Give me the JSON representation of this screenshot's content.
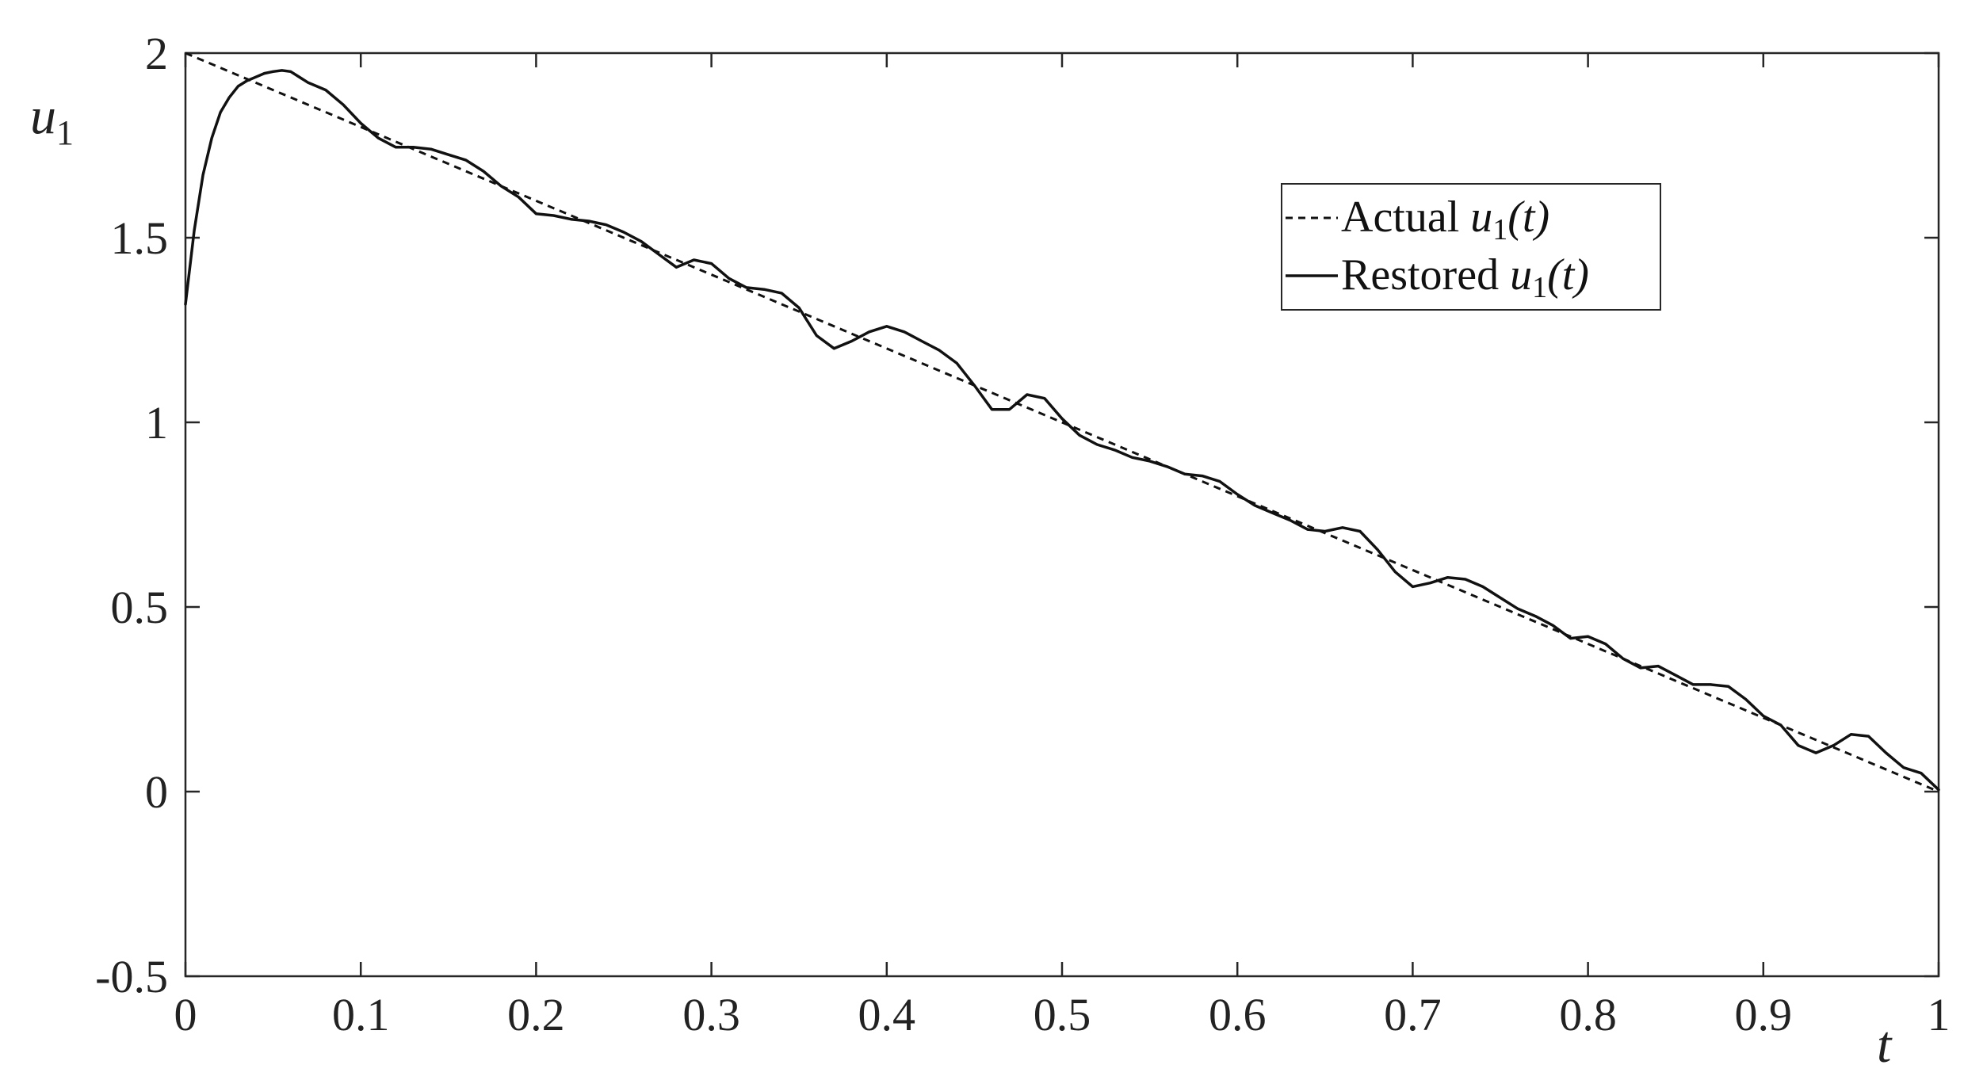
{
  "chart_data": {
    "type": "line",
    "title": "",
    "xlabel": "t",
    "ylabel": {
      "base": "u",
      "sub": "1"
    },
    "xlim": [
      0,
      1
    ],
    "ylim": [
      -0.5,
      2
    ],
    "x_ticks": [
      0,
      0.1,
      0.2,
      0.3,
      0.4,
      0.5,
      0.6,
      0.7,
      0.8,
      0.9,
      1
    ],
    "x_tick_labels": [
      "0",
      "0.1",
      "0.2",
      "0.3",
      "0.4",
      "0.5",
      "0.6",
      "0.7",
      "0.8",
      "0.9",
      "1"
    ],
    "y_ticks": [
      -0.5,
      0,
      0.5,
      1,
      1.5,
      2
    ],
    "y_tick_labels": [
      "-0.5",
      "0",
      "0.5",
      "1",
      "1.5",
      "2"
    ],
    "grid": false,
    "legend_position": "top-right",
    "series": [
      {
        "name": "Actual u1(t)",
        "legend": {
          "prefix": "Actual ",
          "math": "u",
          "sub": "1",
          "suffix": "(t)"
        },
        "style": "dashed",
        "color": "#111111",
        "x": [
          0,
          1
        ],
        "y": [
          2,
          0
        ]
      },
      {
        "name": "Restored u1(t)",
        "legend": {
          "prefix": "Restored ",
          "math": "u",
          "sub": "1",
          "suffix": "(t)"
        },
        "style": "solid",
        "color": "#111111",
        "x": [
          0,
          0.005,
          0.01,
          0.015,
          0.02,
          0.025,
          0.03,
          0.035,
          0.04,
          0.045,
          0.05,
          0.055,
          0.06,
          0.07,
          0.08,
          0.09,
          0.1,
          0.11,
          0.12,
          0.13,
          0.14,
          0.15,
          0.16,
          0.17,
          0.18,
          0.19,
          0.2,
          0.21,
          0.22,
          0.23,
          0.24,
          0.25,
          0.26,
          0.27,
          0.28,
          0.29,
          0.3,
          0.31,
          0.32,
          0.33,
          0.34,
          0.35,
          0.36,
          0.37,
          0.38,
          0.39,
          0.4,
          0.41,
          0.42,
          0.43,
          0.44,
          0.45,
          0.46,
          0.47,
          0.48,
          0.49,
          0.5,
          0.51,
          0.52,
          0.53,
          0.54,
          0.55,
          0.56,
          0.57,
          0.58,
          0.59,
          0.6,
          0.61,
          0.62,
          0.63,
          0.64,
          0.65,
          0.66,
          0.67,
          0.68,
          0.69,
          0.7,
          0.71,
          0.72,
          0.73,
          0.74,
          0.75,
          0.76,
          0.77,
          0.78,
          0.79,
          0.8,
          0.81,
          0.82,
          0.83,
          0.84,
          0.85,
          0.86,
          0.87,
          0.88,
          0.89,
          0.9,
          0.91,
          0.92,
          0.93,
          0.94,
          0.95,
          0.96,
          0.97,
          0.98,
          0.99,
          1.0
        ],
        "y": [
          1.32,
          1.52,
          1.67,
          1.77,
          1.84,
          1.88,
          1.91,
          1.925,
          1.935,
          1.945,
          1.95,
          1.953,
          1.95,
          1.92,
          1.9,
          1.86,
          1.81,
          1.77,
          1.745,
          1.745,
          1.74,
          1.725,
          1.71,
          1.68,
          1.64,
          1.61,
          1.565,
          1.56,
          1.55,
          1.545,
          1.535,
          1.515,
          1.49,
          1.455,
          1.42,
          1.44,
          1.43,
          1.39,
          1.365,
          1.36,
          1.35,
          1.31,
          1.235,
          1.2,
          1.22,
          1.245,
          1.26,
          1.245,
          1.22,
          1.195,
          1.16,
          1.1,
          1.035,
          1.035,
          1.075,
          1.065,
          1.01,
          0.965,
          0.94,
          0.925,
          0.905,
          0.895,
          0.88,
          0.86,
          0.855,
          0.84,
          0.805,
          0.775,
          0.755,
          0.735,
          0.71,
          0.705,
          0.715,
          0.705,
          0.655,
          0.595,
          0.555,
          0.565,
          0.58,
          0.575,
          0.555,
          0.525,
          0.495,
          0.475,
          0.45,
          0.415,
          0.42,
          0.4,
          0.36,
          0.335,
          0.34,
          0.315,
          0.29,
          0.29,
          0.285,
          0.25,
          0.205,
          0.18,
          0.125,
          0.105,
          0.125,
          0.155,
          0.15,
          0.105,
          0.065,
          0.05,
          0.005
        ]
      }
    ]
  }
}
